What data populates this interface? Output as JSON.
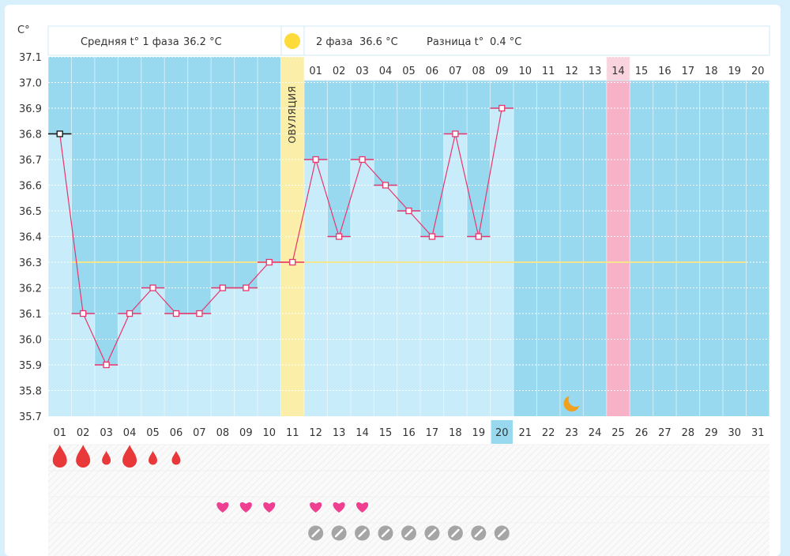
{
  "chart_data": {
    "type": "line",
    "title": "",
    "ylabel": "C°",
    "ylim": [
      35.7,
      37.1
    ],
    "yticks": [
      "37.1",
      "37.0",
      "36.9",
      "36.8",
      "36.7",
      "36.6",
      "36.5",
      "36.4",
      "36.3",
      "36.2",
      "36.1",
      "36.0",
      "35.9",
      "35.8",
      "35.7"
    ],
    "x": [
      "01",
      "02",
      "03",
      "04",
      "05",
      "06",
      "07",
      "08",
      "09",
      "10",
      "11",
      "12",
      "13",
      "14",
      "15",
      "16",
      "17",
      "18",
      "19",
      "20",
      "21",
      "22",
      "23",
      "24",
      "25",
      "26",
      "27",
      "28",
      "29",
      "30",
      "31"
    ],
    "temperatures": [
      36.8,
      36.1,
      35.9,
      36.1,
      36.2,
      36.1,
      36.1,
      36.2,
      36.2,
      36.3,
      36.3,
      36.7,
      36.4,
      36.7,
      36.6,
      36.5,
      36.4,
      36.8,
      36.4,
      36.9
    ],
    "coverline": 36.3,
    "phase1_label": "Средняя t° 1 фаза",
    "phase1_value": "36.2 °C",
    "phase2_label": "2 фаза",
    "phase2_value": "36.6 °C",
    "diff_label": "Разница t°",
    "diff_value": "0.4 °C",
    "ovulation_label": "ОВУЛЯЦИЯ",
    "ovulation_day_index": 10,
    "phase2_day_labels": [
      "01",
      "02",
      "03",
      "04",
      "05",
      "06",
      "07",
      "08",
      "09",
      "10",
      "11",
      "12",
      "13",
      "14",
      "15",
      "16",
      "17",
      "18",
      "19",
      "20"
    ],
    "highlight_phase2_day": "14",
    "highlight_cycle_day": "25",
    "current_day": "20",
    "moon_day": "23",
    "menstruation": [
      {
        "day": "01",
        "size": "large"
      },
      {
        "day": "02",
        "size": "large"
      },
      {
        "day": "03",
        "size": "small"
      },
      {
        "day": "04",
        "size": "large"
      },
      {
        "day": "05",
        "size": "small"
      },
      {
        "day": "06",
        "size": "small"
      }
    ],
    "hearts_days": [
      "08",
      "09",
      "10",
      "12",
      "13",
      "14"
    ],
    "pill_days": [
      "12",
      "13",
      "14",
      "15",
      "16",
      "17",
      "18",
      "19",
      "20"
    ]
  },
  "colors": {
    "plot_bg": "#98d9f0",
    "bar_fill": "#c9ecfa",
    "line": "#e8366d",
    "coverline": "#f5e58c",
    "ovulation_band": "#fbeea8",
    "highlight_band": "#f7b2c8",
    "current_day_bg": "#98d9f0",
    "drop": "#e8383a",
    "heart": "#ee3f91",
    "pill": "#a5a5a5",
    "moon": "#f0a01c",
    "sun": "#fddb3a"
  }
}
